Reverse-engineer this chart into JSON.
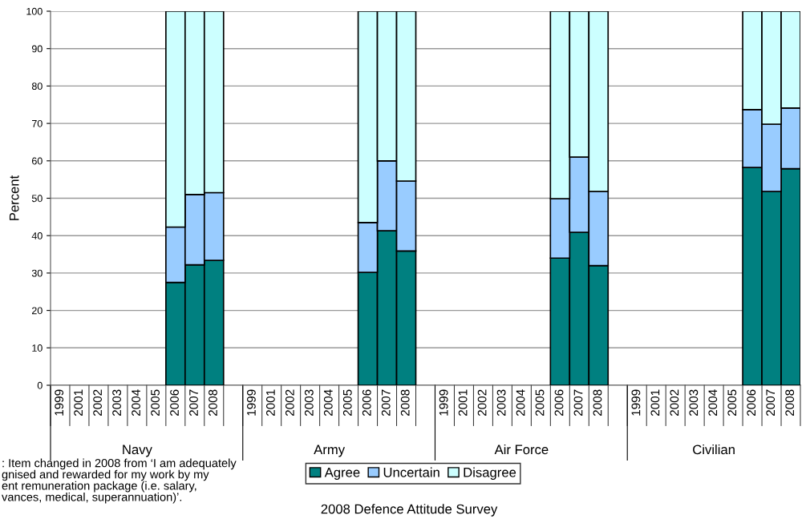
{
  "chart_data": {
    "type": "bar",
    "stacked": true,
    "ylabel": "Percent",
    "categories": [
      "1999",
      "2001",
      "2002",
      "2003",
      "2004",
      "2005",
      "2006",
      "2007",
      "2008",
      null,
      "1999",
      "2001",
      "2002",
      "2003",
      "2004",
      "2005",
      "2006",
      "2007",
      "2008",
      null,
      "1999",
      "2001",
      "2002",
      "2003",
      "2004",
      "2005",
      "2006",
      "2007",
      "2008",
      null,
      "1999",
      "2001",
      "2002",
      "2003",
      "2004",
      "2005",
      "2006",
      "2007",
      "2008"
    ],
    "series": [
      {
        "name": "Agree",
        "color": "#008080",
        "values": [
          null,
          null,
          null,
          null,
          null,
          null,
          27.5,
          32.2,
          33.4,
          null,
          null,
          null,
          null,
          null,
          null,
          null,
          30.2,
          41.3,
          35.9,
          null,
          null,
          null,
          null,
          null,
          null,
          null,
          34,
          40.9,
          32,
          null,
          null,
          null,
          null,
          null,
          null,
          null,
          58.2,
          51.8,
          57.9
        ]
      },
      {
        "name": "Uncertain",
        "color": "#99ccff",
        "values": [
          null,
          null,
          null,
          null,
          null,
          null,
          14.8,
          18.8,
          18.1,
          null,
          null,
          null,
          null,
          null,
          null,
          null,
          13.3,
          18.7,
          18.7,
          null,
          null,
          null,
          null,
          null,
          null,
          null,
          15.9,
          20.1,
          19.8,
          null,
          null,
          null,
          null,
          null,
          null,
          null,
          15.5,
          18,
          16.2
        ]
      },
      {
        "name": "Disagree",
        "color": "#ccffff",
        "values": [
          null,
          null,
          null,
          null,
          null,
          null,
          57.7,
          49,
          48.5,
          null,
          null,
          null,
          null,
          null,
          null,
          null,
          56.5,
          40,
          45.4,
          null,
          null,
          null,
          null,
          null,
          null,
          null,
          50.1,
          39,
          48.2,
          null,
          null,
          null,
          null,
          null,
          null,
          null,
          26.3,
          30.2,
          25.9
        ]
      }
    ],
    "ylim": [
      0,
      100
    ],
    "yticks": [
      0,
      10,
      20,
      30,
      40,
      50,
      60,
      70,
      80,
      90,
      100
    ],
    "grid": "y",
    "legend": "bottom",
    "annotations": [
      "Navy",
      "Army",
      "Air Force",
      "Civilian",
      ": Item changed in 2008 from ‘I am adequately\ngnised and rewarded for my work by my\nent remuneration package (i.e. salary,\nvances, medical, superannuation)’.",
      "2008 Defence Attitude Survey"
    ]
  }
}
